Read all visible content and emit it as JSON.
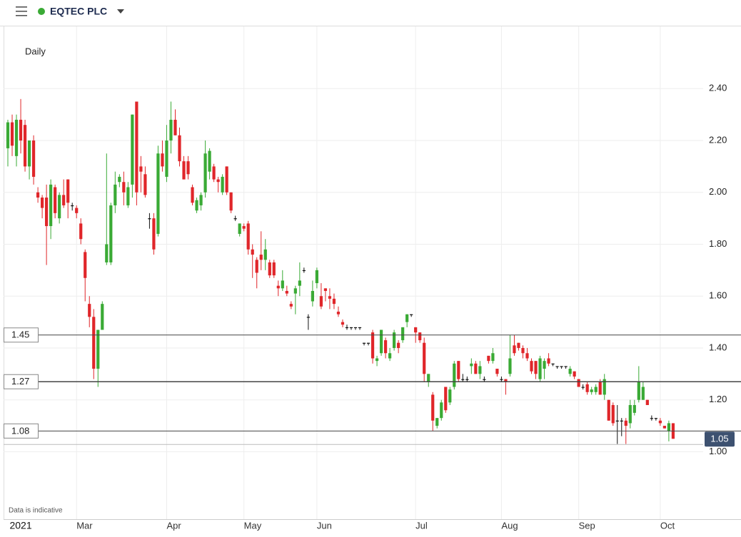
{
  "header": {
    "title": "EQTEC PLC"
  },
  "chart_data": {
    "type": "candlestick",
    "interval": "Daily",
    "footnote": "Data is indicative",
    "up_color": "#3aaa35",
    "down_color": "#e0262a",
    "ylim": [
      0.74,
      2.64
    ],
    "yticks": [
      {
        "value": 1.0,
        "label": "1.00"
      },
      {
        "value": 1.2,
        "label": "1.20"
      },
      {
        "value": 1.4,
        "label": "1.40"
      },
      {
        "value": 1.6,
        "label": "1.60"
      },
      {
        "value": 1.8,
        "label": "1.80"
      },
      {
        "value": 2.0,
        "label": "2.00"
      },
      {
        "value": 2.2,
        "label": "2.20"
      },
      {
        "value": 2.4,
        "label": "2.40"
      }
    ],
    "xlim": [
      -1,
      162
    ],
    "xticks": [
      {
        "value": 3,
        "label": "2021"
      },
      {
        "value": 16,
        "label": "Mar"
      },
      {
        "value": 37,
        "label": "Apr"
      },
      {
        "value": 55,
        "label": "May"
      },
      {
        "value": 72,
        "label": "Jun"
      },
      {
        "value": 95,
        "label": "Jul"
      },
      {
        "value": 115,
        "label": "Aug"
      },
      {
        "value": 133,
        "label": "Sep"
      },
      {
        "value": 152,
        "label": "Oct"
      }
    ],
    "hlines": [
      1.45,
      1.27,
      1.08
    ],
    "last_price": 1.05,
    "candles": [
      [
        2.17,
        2.28,
        2.1,
        2.27
      ],
      [
        2.27,
        2.3,
        2.14,
        2.18
      ],
      [
        2.14,
        2.3,
        2.1,
        2.28
      ],
      [
        2.28,
        2.36,
        2.15,
        2.2
      ],
      [
        2.26,
        2.28,
        2.08,
        2.1
      ],
      [
        2.1,
        2.2,
        2.05,
        2.2
      ],
      [
        2.2,
        2.22,
        2.03,
        2.06
      ],
      [
        2.0,
        2.02,
        1.96,
        1.98
      ],
      [
        1.98,
        1.99,
        1.9,
        1.94
      ],
      [
        1.98,
        2.03,
        1.72,
        1.87
      ],
      [
        1.87,
        2.05,
        1.82,
        2.03
      ],
      [
        2.02,
        2.03,
        1.9,
        1.92
      ],
      [
        1.9,
        2.0,
        1.88,
        1.99
      ],
      [
        1.99,
        2.05,
        1.94,
        1.95
      ],
      [
        2.05,
        2.05,
        1.9,
        1.96
      ],
      [
        1.95,
        1.96,
        1.93,
        1.95
      ],
      [
        1.94,
        1.95,
        1.9,
        1.92
      ],
      [
        1.88,
        1.9,
        1.8,
        1.82
      ],
      [
        1.77,
        1.78,
        1.58,
        1.67
      ],
      [
        1.57,
        1.6,
        1.48,
        1.52
      ],
      [
        1.52,
        1.55,
        1.28,
        1.32
      ],
      [
        1.32,
        1.47,
        1.25,
        1.47
      ],
      [
        1.47,
        1.58,
        1.47,
        1.57
      ],
      [
        1.73,
        2.15,
        1.72,
        1.8
      ],
      [
        1.73,
        1.96,
        1.72,
        1.95
      ],
      [
        1.95,
        2.08,
        1.92,
        2.03
      ],
      [
        2.04,
        2.07,
        2.02,
        2.06
      ],
      [
        2.04,
        2.08,
        1.95,
        2.0
      ],
      [
        1.95,
        2.04,
        1.94,
        2.02
      ],
      [
        2.03,
        2.3,
        1.98,
        2.3
      ],
      [
        2.35,
        2.35,
        1.95,
        2.0
      ],
      [
        2.1,
        2.14,
        2.0,
        2.08
      ],
      [
        2.07,
        2.1,
        1.98,
        1.99
      ],
      [
        1.9,
        1.92,
        1.86,
        1.9
      ],
      [
        1.9,
        1.92,
        1.76,
        1.78
      ],
      [
        1.84,
        2.18,
        1.83,
        2.15
      ],
      [
        2.15,
        2.2,
        2.08,
        2.1
      ],
      [
        2.06,
        2.26,
        2.04,
        2.2
      ],
      [
        2.2,
        2.35,
        2.15,
        2.28
      ],
      [
        2.28,
        2.32,
        2.22,
        2.22
      ],
      [
        2.22,
        2.25,
        2.1,
        2.12
      ],
      [
        2.12,
        2.14,
        2.05,
        2.05
      ],
      [
        2.12,
        2.14,
        2.05,
        2.07
      ],
      [
        2.02,
        2.03,
        1.95,
        1.96
      ],
      [
        1.93,
        1.98,
        1.92,
        1.97
      ],
      [
        1.95,
        2.0,
        1.93,
        1.99
      ],
      [
        2.0,
        2.2,
        1.98,
        2.15
      ],
      [
        2.08,
        2.17,
        2.05,
        2.16
      ],
      [
        2.1,
        2.11,
        2.04,
        2.05
      ],
      [
        2.05,
        2.06,
        2.0,
        2.04
      ],
      [
        2.0,
        2.07,
        1.99,
        2.06
      ],
      [
        2.1,
        2.1,
        1.99,
        2.0
      ],
      [
        2.0,
        2.0,
        1.92,
        1.93
      ],
      [
        1.9,
        1.91,
        1.89,
        1.9
      ],
      [
        1.84,
        1.88,
        1.83,
        1.88
      ],
      [
        1.87,
        1.88,
        1.85,
        1.86
      ],
      [
        1.88,
        1.89,
        1.76,
        1.78
      ],
      [
        1.78,
        1.8,
        1.67,
        1.76
      ],
      [
        1.74,
        1.75,
        1.63,
        1.69
      ],
      [
        1.76,
        1.85,
        1.7,
        1.74
      ],
      [
        1.74,
        1.82,
        1.7,
        1.78
      ],
      [
        1.73,
        1.74,
        1.67,
        1.68
      ],
      [
        1.73,
        1.74,
        1.67,
        1.68
      ],
      [
        1.64,
        1.66,
        1.6,
        1.63
      ],
      [
        1.63,
        1.7,
        1.62,
        1.66
      ],
      [
        1.62,
        1.64,
        1.6,
        1.61
      ],
      [
        1.57,
        1.58,
        1.55,
        1.56
      ],
      [
        1.61,
        1.64,
        1.53,
        1.63
      ],
      [
        1.64,
        1.73,
        1.6,
        1.66
      ],
      [
        1.7,
        1.71,
        1.69,
        1.7
      ],
      [
        1.52,
        1.53,
        1.47,
        1.52
      ],
      [
        1.58,
        1.66,
        1.56,
        1.62
      ],
      [
        1.65,
        1.71,
        1.63,
        1.7
      ],
      [
        1.6,
        1.65,
        1.55,
        1.56
      ],
      [
        1.63,
        1.63,
        1.58,
        1.62
      ],
      [
        1.6,
        1.63,
        1.55,
        1.59
      ],
      [
        1.59,
        1.61,
        1.55,
        1.57
      ],
      [
        1.54,
        1.56,
        1.52,
        1.53
      ],
      [
        1.5,
        1.51,
        1.48,
        1.49
      ],
      [
        1.48,
        1.49,
        1.47,
        1.48
      ],
      [
        1.48,
        1.48,
        1.47,
        1.48
      ],
      [
        1.48,
        1.48,
        1.47,
        1.48
      ],
      [
        1.48,
        1.48,
        1.47,
        1.48
      ],
      [
        1.42,
        1.42,
        1.41,
        1.42
      ],
      [
        1.42,
        1.42,
        1.41,
        1.42
      ],
      [
        1.46,
        1.47,
        1.34,
        1.36
      ],
      [
        1.35,
        1.37,
        1.33,
        1.36
      ],
      [
        1.38,
        1.47,
        1.37,
        1.47
      ],
      [
        1.43,
        1.44,
        1.36,
        1.38
      ],
      [
        1.36,
        1.4,
        1.35,
        1.38
      ],
      [
        1.4,
        1.47,
        1.39,
        1.46
      ],
      [
        1.42,
        1.43,
        1.38,
        1.4
      ],
      [
        1.43,
        1.48,
        1.42,
        1.48
      ],
      [
        1.5,
        1.53,
        1.48,
        1.53
      ],
      [
        1.53,
        1.53,
        1.52,
        1.53
      ],
      [
        1.48,
        1.48,
        1.42,
        1.46
      ],
      [
        1.46,
        1.46,
        1.42,
        1.43
      ],
      [
        1.42,
        1.44,
        1.27,
        1.3
      ],
      [
        1.27,
        1.3,
        1.25,
        1.3
      ],
      [
        1.22,
        1.23,
        1.08,
        1.12
      ],
      [
        1.1,
        1.13,
        1.09,
        1.13
      ],
      [
        1.13,
        1.2,
        1.12,
        1.19
      ],
      [
        1.25,
        1.25,
        1.15,
        1.16
      ],
      [
        1.19,
        1.25,
        1.18,
        1.24
      ],
      [
        1.25,
        1.35,
        1.24,
        1.34
      ],
      [
        1.35,
        1.35,
        1.27,
        1.28
      ],
      [
        1.28,
        1.3,
        1.27,
        1.28
      ],
      [
        1.28,
        1.29,
        1.27,
        1.28
      ],
      [
        1.33,
        1.36,
        1.3,
        1.34
      ],
      [
        1.34,
        1.35,
        1.3,
        1.3
      ],
      [
        1.3,
        1.35,
        1.28,
        1.33
      ],
      [
        1.28,
        1.29,
        1.27,
        1.28
      ],
      [
        1.37,
        1.37,
        1.34,
        1.35
      ],
      [
        1.35,
        1.4,
        1.34,
        1.38
      ],
      [
        1.32,
        1.32,
        1.29,
        1.3
      ],
      [
        1.28,
        1.29,
        1.27,
        1.28
      ],
      [
        1.28,
        1.28,
        1.22,
        1.27
      ],
      [
        1.3,
        1.45,
        1.29,
        1.36
      ],
      [
        1.41,
        1.45,
        1.37,
        1.38
      ],
      [
        1.42,
        1.42,
        1.39,
        1.4
      ],
      [
        1.4,
        1.41,
        1.36,
        1.38
      ],
      [
        1.38,
        1.4,
        1.35,
        1.36
      ],
      [
        1.35,
        1.36,
        1.3,
        1.31
      ],
      [
        1.35,
        1.35,
        1.28,
        1.3
      ],
      [
        1.28,
        1.37,
        1.27,
        1.36
      ],
      [
        1.32,
        1.36,
        1.28,
        1.35
      ],
      [
        1.36,
        1.38,
        1.33,
        1.34
      ],
      [
        1.34,
        1.34,
        1.33,
        1.34
      ],
      [
        1.33,
        1.33,
        1.32,
        1.33
      ],
      [
        1.33,
        1.33,
        1.32,
        1.33
      ],
      [
        1.33,
        1.33,
        1.32,
        1.33
      ],
      [
        1.3,
        1.33,
        1.29,
        1.32
      ],
      [
        1.31,
        1.31,
        1.28,
        1.29
      ],
      [
        1.28,
        1.28,
        1.25,
        1.25
      ],
      [
        1.25,
        1.26,
        1.24,
        1.25
      ],
      [
        1.26,
        1.27,
        1.22,
        1.23
      ],
      [
        1.23,
        1.25,
        1.22,
        1.24
      ],
      [
        1.23,
        1.26,
        1.22,
        1.25
      ],
      [
        1.27,
        1.28,
        1.22,
        1.22
      ],
      [
        1.22,
        1.3,
        1.2,
        1.28
      ],
      [
        1.2,
        1.2,
        1.12,
        1.12
      ],
      [
        1.18,
        1.19,
        1.1,
        1.11
      ],
      [
        1.12,
        1.18,
        1.03,
        1.12
      ],
      [
        1.12,
        1.13,
        1.06,
        1.12
      ],
      [
        1.12,
        1.13,
        1.03,
        1.1
      ],
      [
        1.11,
        1.2,
        1.09,
        1.18
      ],
      [
        1.15,
        1.2,
        1.14,
        1.18
      ],
      [
        1.2,
        1.33,
        1.19,
        1.27
      ],
      [
        1.2,
        1.27,
        1.2,
        1.25
      ],
      [
        1.2,
        1.2,
        1.18,
        1.18
      ],
      [
        1.13,
        1.14,
        1.12,
        1.13
      ],
      [
        1.13,
        1.13,
        1.12,
        1.13
      ],
      [
        1.12,
        1.13,
        1.1,
        1.11
      ],
      [
        1.1,
        1.1,
        1.09,
        1.09
      ],
      [
        1.08,
        1.12,
        1.04,
        1.11
      ],
      [
        1.11,
        1.11,
        1.05,
        1.05
      ]
    ]
  }
}
